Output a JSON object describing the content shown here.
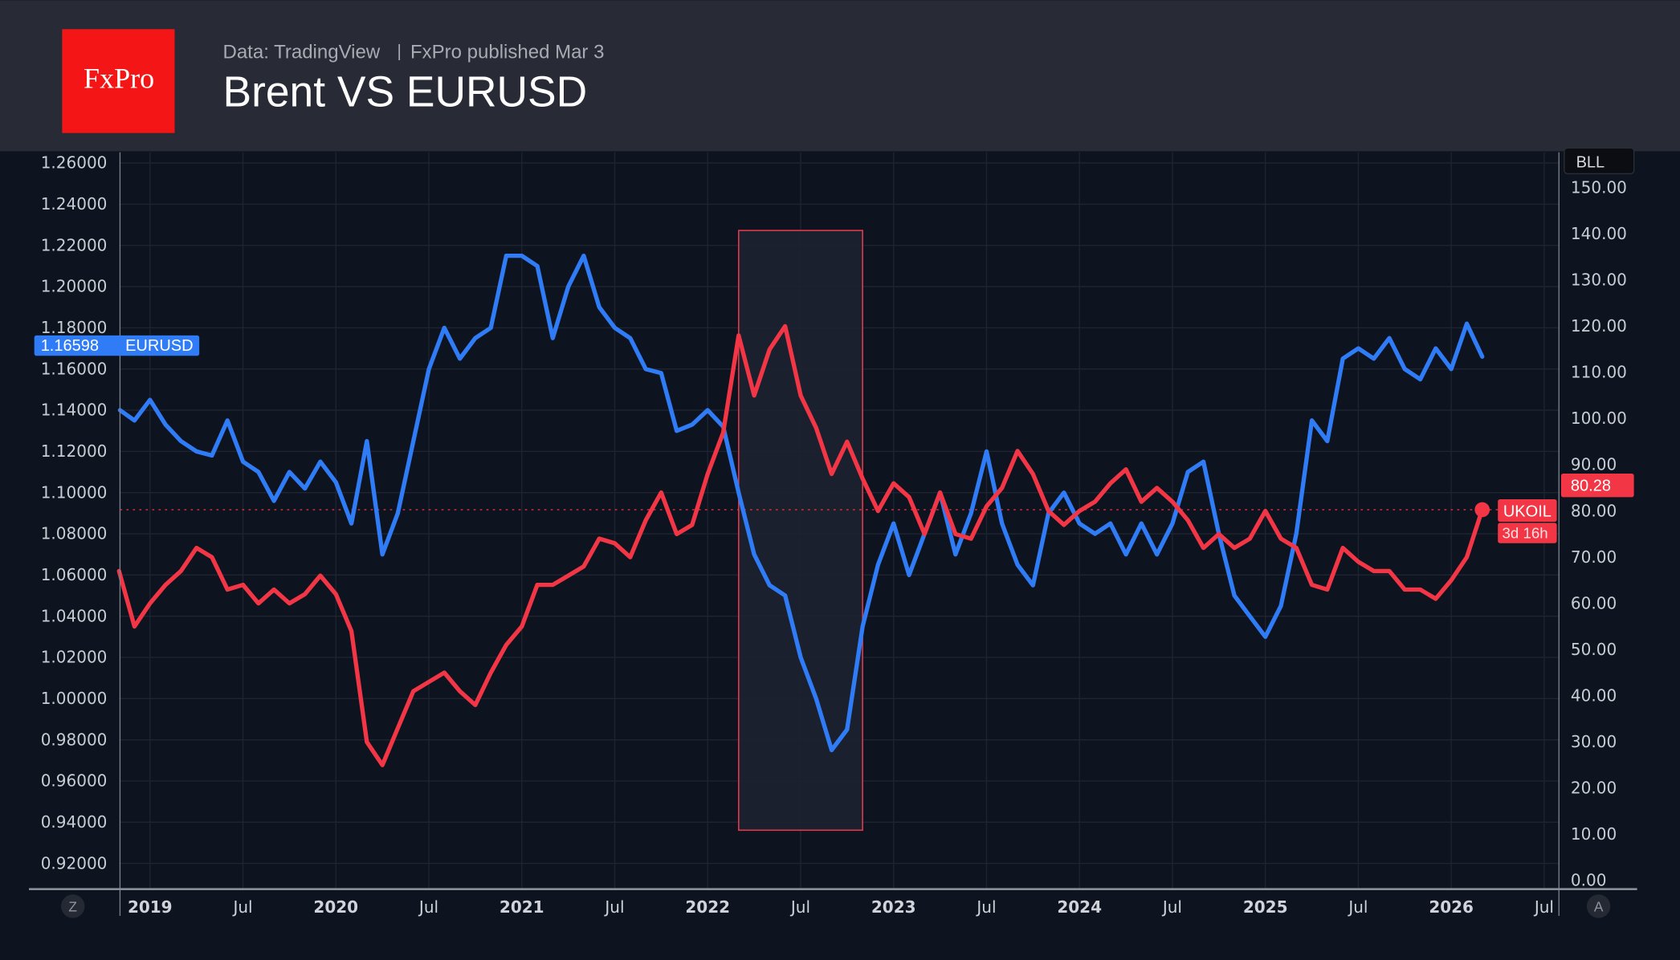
{
  "header": {
    "logo_text": "FxPro",
    "source": "Data: TradingView",
    "published": "FxPro published Mar 3",
    "title": "Brent VS EURUSD"
  },
  "colors": {
    "eurusd": "#2f7cf6",
    "ukoil": "#f23645",
    "logo": "#f41616",
    "header_bg": "#282a36",
    "chart_bg": "#0d1420"
  },
  "controls": {
    "left_button": "Z",
    "right_button": "A",
    "unit_badge": "BLL"
  },
  "chart_data": {
    "type": "line",
    "title": "Brent VS EURUSD",
    "x_ticks": [
      {
        "label": "2019",
        "date": "2019-01",
        "year": true
      },
      {
        "label": "Jul",
        "date": "2019-07"
      },
      {
        "label": "2020",
        "date": "2020-01",
        "year": true
      },
      {
        "label": "Jul",
        "date": "2020-07"
      },
      {
        "label": "2021",
        "date": "2021-01",
        "year": true
      },
      {
        "label": "Jul",
        "date": "2021-07"
      },
      {
        "label": "2022",
        "date": "2022-01",
        "year": true
      },
      {
        "label": "Jul",
        "date": "2022-07"
      },
      {
        "label": "2023",
        "date": "2023-01",
        "year": true
      },
      {
        "label": "Jul",
        "date": "2023-07"
      },
      {
        "label": "2024",
        "date": "2024-01",
        "year": true
      },
      {
        "label": "Jul",
        "date": "2024-07"
      },
      {
        "label": "2025",
        "date": "2025-01",
        "year": true
      },
      {
        "label": "Jul",
        "date": "2025-07"
      },
      {
        "label": "2026",
        "date": "2026-01",
        "year": true
      },
      {
        "label": "Jul",
        "date": "2026-07"
      }
    ],
    "left_axis": {
      "ylim": [
        0.92,
        1.26
      ],
      "ticks": [
        "1.26000",
        "1.24000",
        "1.22000",
        "1.20000",
        "1.18000",
        "1.16000",
        "1.14000",
        "1.12000",
        "1.10000",
        "1.08000",
        "1.06000",
        "1.04000",
        "1.02000",
        "1.00000",
        "0.98000",
        "0.96000",
        "0.94000",
        "0.92000"
      ]
    },
    "right_axis": {
      "ylim": [
        0,
        150
      ],
      "ticks": [
        "150.00",
        "140.00",
        "130.00",
        "120.00",
        "110.00",
        "100.00",
        "90.00",
        "80.00",
        "70.00",
        "60.00",
        "50.00",
        "40.00",
        "30.00",
        "20.00",
        "10.00",
        "0.00"
      ]
    },
    "grid": true,
    "highlight": {
      "from": "2022-03",
      "to": "2022-11"
    },
    "series": [
      {
        "name": "EURUSD",
        "axis": "left",
        "last_value": "1.16598",
        "x": [
          "2018-11",
          "2018-12",
          "2019-01",
          "2019-02",
          "2019-03",
          "2019-04",
          "2019-05",
          "2019-06",
          "2019-07",
          "2019-08",
          "2019-09",
          "2019-10",
          "2019-11",
          "2019-12",
          "2020-01",
          "2020-02",
          "2020-03",
          "2020-04",
          "2020-05",
          "2020-06",
          "2020-07",
          "2020-08",
          "2020-09",
          "2020-10",
          "2020-11",
          "2020-12",
          "2021-01",
          "2021-02",
          "2021-03",
          "2021-04",
          "2021-05",
          "2021-06",
          "2021-07",
          "2021-08",
          "2021-09",
          "2021-10",
          "2021-11",
          "2021-12",
          "2022-01",
          "2022-02",
          "2022-03",
          "2022-04",
          "2022-05",
          "2022-06",
          "2022-07",
          "2022-08",
          "2022-09",
          "2022-10",
          "2022-11",
          "2022-12",
          "2023-01",
          "2023-02",
          "2023-03",
          "2023-04",
          "2023-05",
          "2023-06",
          "2023-07",
          "2023-08",
          "2023-09",
          "2023-10",
          "2023-11",
          "2023-12",
          "2024-01",
          "2024-02",
          "2024-03",
          "2024-04",
          "2024-05",
          "2024-06",
          "2024-07",
          "2024-08",
          "2024-09",
          "2024-10",
          "2024-11",
          "2024-12",
          "2025-01",
          "2025-02",
          "2025-03",
          "2025-04",
          "2025-05",
          "2025-06",
          "2025-07",
          "2025-08",
          "2025-09",
          "2025-10",
          "2025-11",
          "2025-12",
          "2026-01",
          "2026-02",
          "2026-03"
        ],
        "values": [
          1.14,
          1.135,
          1.145,
          1.133,
          1.125,
          1.12,
          1.118,
          1.135,
          1.115,
          1.11,
          1.096,
          1.11,
          1.102,
          1.115,
          1.105,
          1.085,
          1.125,
          1.07,
          1.09,
          1.125,
          1.16,
          1.18,
          1.165,
          1.175,
          1.18,
          1.215,
          1.215,
          1.21,
          1.175,
          1.2,
          1.215,
          1.19,
          1.18,
          1.175,
          1.16,
          1.158,
          1.13,
          1.133,
          1.14,
          1.132,
          1.1,
          1.07,
          1.055,
          1.05,
          1.02,
          1.0,
          0.975,
          0.985,
          1.035,
          1.065,
          1.085,
          1.06,
          1.08,
          1.1,
          1.07,
          1.09,
          1.12,
          1.085,
          1.065,
          1.055,
          1.09,
          1.1,
          1.085,
          1.08,
          1.085,
          1.07,
          1.085,
          1.07,
          1.085,
          1.11,
          1.115,
          1.08,
          1.05,
          1.04,
          1.03,
          1.045,
          1.08,
          1.135,
          1.125,
          1.165,
          1.17,
          1.165,
          1.175,
          1.16,
          1.155,
          1.17,
          1.16,
          1.182,
          1.166
        ]
      },
      {
        "name": "UKOIL",
        "axis": "right",
        "last_value": "80.28",
        "countdown": "3d 16h",
        "x": [
          "2018-11",
          "2018-12",
          "2019-01",
          "2019-02",
          "2019-03",
          "2019-04",
          "2019-05",
          "2019-06",
          "2019-07",
          "2019-08",
          "2019-09",
          "2019-10",
          "2019-11",
          "2019-12",
          "2020-01",
          "2020-02",
          "2020-03",
          "2020-04",
          "2020-05",
          "2020-06",
          "2020-07",
          "2020-08",
          "2020-09",
          "2020-10",
          "2020-11",
          "2020-12",
          "2021-01",
          "2021-02",
          "2021-03",
          "2021-04",
          "2021-05",
          "2021-06",
          "2021-07",
          "2021-08",
          "2021-09",
          "2021-10",
          "2021-11",
          "2021-12",
          "2022-01",
          "2022-02",
          "2022-03",
          "2022-04",
          "2022-05",
          "2022-06",
          "2022-07",
          "2022-08",
          "2022-09",
          "2022-10",
          "2022-11",
          "2022-12",
          "2023-01",
          "2023-02",
          "2023-03",
          "2023-04",
          "2023-05",
          "2023-06",
          "2023-07",
          "2023-08",
          "2023-09",
          "2023-10",
          "2023-11",
          "2023-12",
          "2024-01",
          "2024-02",
          "2024-03",
          "2024-04",
          "2024-05",
          "2024-06",
          "2024-07",
          "2024-08",
          "2024-09",
          "2024-10",
          "2024-11",
          "2024-12",
          "2025-01",
          "2025-02",
          "2025-03",
          "2025-04",
          "2025-05",
          "2025-06",
          "2025-07",
          "2025-08",
          "2025-09",
          "2025-10",
          "2025-11",
          "2025-12",
          "2026-01",
          "2026-02",
          "2026-03"
        ],
        "values": [
          67,
          55,
          60,
          64,
          67,
          72,
          70,
          63,
          64,
          60,
          63,
          60,
          62,
          66,
          62,
          54,
          30,
          25,
          33,
          41,
          43,
          45,
          41,
          38,
          45,
          51,
          55,
          64,
          64,
          66,
          68,
          74,
          73,
          70,
          78,
          84,
          75,
          77,
          88,
          97,
          118,
          105,
          115,
          120,
          105,
          98,
          88,
          95,
          87,
          80,
          86,
          83,
          75,
          84,
          75,
          74,
          81,
          85,
          93,
          88,
          80,
          77,
          80,
          82,
          86,
          89,
          82,
          85,
          82,
          78,
          72,
          75,
          72,
          74,
          80,
          74,
          72,
          64,
          63,
          72,
          69,
          67,
          67,
          63,
          63,
          61,
          65,
          70,
          80.28
        ]
      }
    ]
  }
}
